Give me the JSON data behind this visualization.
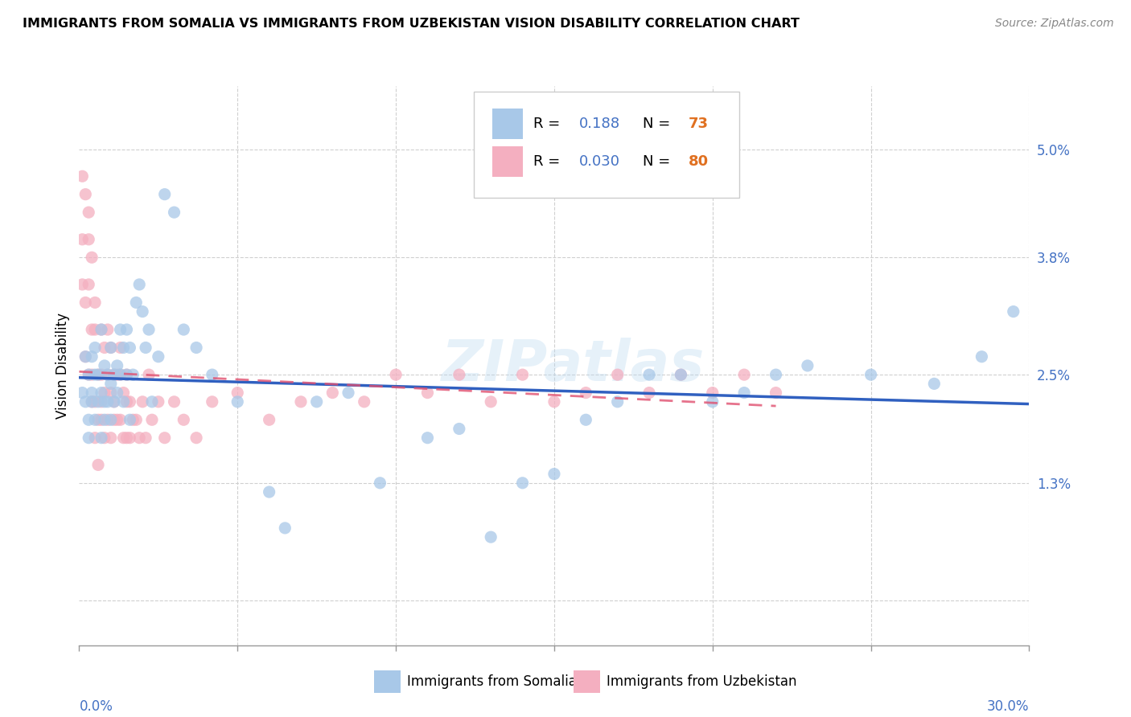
{
  "title": "IMMIGRANTS FROM SOMALIA VS IMMIGRANTS FROM UZBEKISTAN VISION DISABILITY CORRELATION CHART",
  "source": "Source: ZipAtlas.com",
  "ylabel": "Vision Disability",
  "xlim": [
    0.0,
    0.3
  ],
  "ylim": [
    -0.005,
    0.057
  ],
  "somalia_color": "#a8c8e8",
  "uzbekistan_color": "#f4afc0",
  "somalia_R": 0.188,
  "somalia_N": 73,
  "uzbekistan_R": 0.03,
  "uzbekistan_N": 80,
  "somalia_line_color": "#3060c0",
  "uzbekistan_line_color": "#e05070",
  "background_color": "#ffffff",
  "somalia_x": [
    0.001,
    0.002,
    0.002,
    0.003,
    0.003,
    0.003,
    0.004,
    0.004,
    0.004,
    0.005,
    0.005,
    0.005,
    0.006,
    0.006,
    0.007,
    0.007,
    0.007,
    0.008,
    0.008,
    0.008,
    0.009,
    0.009,
    0.01,
    0.01,
    0.01,
    0.011,
    0.011,
    0.012,
    0.012,
    0.013,
    0.013,
    0.014,
    0.014,
    0.015,
    0.015,
    0.016,
    0.016,
    0.017,
    0.018,
    0.019,
    0.02,
    0.021,
    0.022,
    0.023,
    0.025,
    0.027,
    0.03,
    0.033,
    0.037,
    0.042,
    0.05,
    0.06,
    0.065,
    0.075,
    0.085,
    0.095,
    0.11,
    0.13,
    0.15,
    0.17,
    0.19,
    0.21,
    0.23,
    0.25,
    0.27,
    0.285,
    0.295,
    0.12,
    0.14,
    0.16,
    0.18,
    0.2,
    0.22
  ],
  "somalia_y": [
    0.023,
    0.027,
    0.022,
    0.02,
    0.025,
    0.018,
    0.023,
    0.027,
    0.022,
    0.025,
    0.028,
    0.02,
    0.022,
    0.025,
    0.03,
    0.023,
    0.018,
    0.026,
    0.022,
    0.02,
    0.025,
    0.022,
    0.028,
    0.024,
    0.02,
    0.025,
    0.022,
    0.026,
    0.023,
    0.03,
    0.025,
    0.028,
    0.022,
    0.03,
    0.025,
    0.028,
    0.02,
    0.025,
    0.033,
    0.035,
    0.032,
    0.028,
    0.03,
    0.022,
    0.027,
    0.045,
    0.043,
    0.03,
    0.028,
    0.025,
    0.022,
    0.012,
    0.008,
    0.022,
    0.023,
    0.013,
    0.018,
    0.007,
    0.014,
    0.022,
    0.025,
    0.023,
    0.026,
    0.025,
    0.024,
    0.027,
    0.032,
    0.019,
    0.013,
    0.02,
    0.025,
    0.022,
    0.025
  ],
  "uzbekistan_x": [
    0.001,
    0.001,
    0.002,
    0.002,
    0.002,
    0.003,
    0.003,
    0.003,
    0.004,
    0.004,
    0.004,
    0.005,
    0.005,
    0.005,
    0.006,
    0.006,
    0.006,
    0.007,
    0.007,
    0.007,
    0.008,
    0.008,
    0.008,
    0.009,
    0.009,
    0.01,
    0.01,
    0.01,
    0.011,
    0.011,
    0.012,
    0.012,
    0.013,
    0.013,
    0.014,
    0.014,
    0.015,
    0.015,
    0.016,
    0.016,
    0.017,
    0.018,
    0.019,
    0.02,
    0.021,
    0.022,
    0.023,
    0.025,
    0.027,
    0.03,
    0.033,
    0.037,
    0.042,
    0.05,
    0.06,
    0.07,
    0.08,
    0.09,
    0.1,
    0.11,
    0.12,
    0.13,
    0.14,
    0.15,
    0.16,
    0.17,
    0.18,
    0.19,
    0.2,
    0.21,
    0.22,
    0.001,
    0.003,
    0.004,
    0.005,
    0.007,
    0.009,
    0.011,
    0.013,
    0.015
  ],
  "uzbekistan_y": [
    0.035,
    0.04,
    0.045,
    0.033,
    0.027,
    0.04,
    0.035,
    0.025,
    0.03,
    0.025,
    0.022,
    0.03,
    0.022,
    0.018,
    0.025,
    0.02,
    0.015,
    0.03,
    0.025,
    0.02,
    0.028,
    0.023,
    0.018,
    0.025,
    0.02,
    0.028,
    0.023,
    0.018,
    0.025,
    0.02,
    0.025,
    0.02,
    0.025,
    0.02,
    0.023,
    0.018,
    0.022,
    0.018,
    0.022,
    0.018,
    0.02,
    0.02,
    0.018,
    0.022,
    0.018,
    0.025,
    0.02,
    0.022,
    0.018,
    0.022,
    0.02,
    0.018,
    0.022,
    0.023,
    0.02,
    0.022,
    0.023,
    0.022,
    0.025,
    0.023,
    0.025,
    0.022,
    0.025,
    0.022,
    0.023,
    0.025,
    0.023,
    0.025,
    0.023,
    0.025,
    0.023,
    0.047,
    0.043,
    0.038,
    0.033,
    0.022,
    0.03,
    0.022,
    0.028,
    0.025
  ]
}
